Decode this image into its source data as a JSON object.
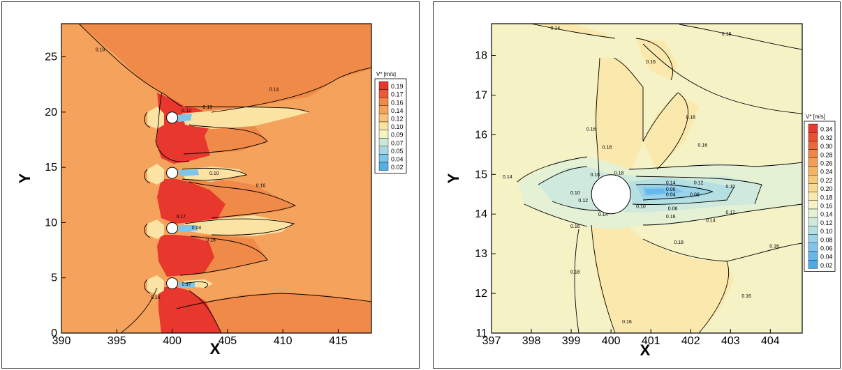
{
  "chart_data": [
    {
      "type": "contour",
      "xlabel": "X",
      "ylabel": "Y",
      "xlim": [
        390,
        418
      ],
      "ylim": [
        0,
        28
      ],
      "xticks": [
        390,
        395,
        400,
        405,
        410,
        415
      ],
      "yticks": [
        0,
        5,
        10,
        15,
        20,
        25
      ],
      "legend_title": "V* [m/s]",
      "legend_levels": [
        "0.19",
        "0.17",
        "0.16",
        "0.14",
        "0.12",
        "0.10",
        "0.09",
        "0.07",
        "0.05",
        "0.04",
        "0.02"
      ],
      "legend_colors": [
        "#e8372c",
        "#ec5a35",
        "#f08a48",
        "#f5a25c",
        "#f8c477",
        "#fbe3a4",
        "#f4f3c2",
        "#cde8d6",
        "#a7d8e3",
        "#7ec5ea",
        "#56afe6"
      ],
      "cylinders": [
        {
          "x": 400,
          "y": 19.5
        },
        {
          "x": 400,
          "y": 14.5
        },
        {
          "x": 400,
          "y": 9.5
        },
        {
          "x": 400,
          "y": 4.5
        }
      ],
      "contour_labels": [
        {
          "text": "0.16",
          "x": 393.5,
          "y": 25.5
        },
        {
          "text": "0.12",
          "x": 401.3,
          "y": 20.0
        },
        {
          "text": "0.10",
          "x": 403.2,
          "y": 20.3
        },
        {
          "text": "0.14",
          "x": 409.2,
          "y": 21.9
        },
        {
          "text": "0.10",
          "x": 403.8,
          "y": 14.3
        },
        {
          "text": "0.16",
          "x": 408.0,
          "y": 13.2
        },
        {
          "text": "0.17",
          "x": 400.8,
          "y": 10.4
        },
        {
          "text": "0.04",
          "x": 402.2,
          "y": 9.4
        },
        {
          "text": "0.16",
          "x": 403.5,
          "y": 8.3
        },
        {
          "text": "0.17",
          "x": 401.3,
          "y": 4.3
        },
        {
          "text": "0.16",
          "x": 398.5,
          "y": 3.1
        }
      ]
    },
    {
      "type": "contour",
      "xlabel": "X",
      "ylabel": "Y",
      "xlim": [
        397,
        404.8
      ],
      "ylim": [
        11,
        18.8
      ],
      "xticks": [
        397,
        398,
        399,
        400,
        401,
        402,
        403,
        404
      ],
      "yticks": [
        11,
        12,
        13,
        14,
        15,
        16,
        17,
        18
      ],
      "legend_title": "V* [m/s]",
      "legend_levels": [
        "0.34",
        "0.32",
        "0.30",
        "0.28",
        "0.26",
        "0.24",
        "0.22",
        "0.20",
        "0.18",
        "0.16",
        "0.14",
        "0.12",
        "0.10",
        "0.08",
        "0.06",
        "0.04",
        "0.02"
      ],
      "legend_colors": [
        "#e83a2e",
        "#ea5032",
        "#ec6a39",
        "#ef8645",
        "#f29e55",
        "#f4b466",
        "#f7c97b",
        "#f9da92",
        "#fbe8ac",
        "#f5f3c6",
        "#e5f1d4",
        "#cfe9dc",
        "#b6dfe2",
        "#9bd3e8",
        "#80c5ec",
        "#66b8ec",
        "#4eaae6"
      ],
      "cylinder": {
        "x": 400,
        "y": 14.5
      },
      "contour_labels": [
        {
          "text": "0.14",
          "x": 398.6,
          "y": 18.65
        },
        {
          "text": "0.16",
          "x": 402.9,
          "y": 18.5
        },
        {
          "text": "0.16",
          "x": 401.0,
          "y": 17.8
        },
        {
          "text": "0.16",
          "x": 399.5,
          "y": 16.1
        },
        {
          "text": "0.18",
          "x": 402.0,
          "y": 16.4
        },
        {
          "text": "0.18",
          "x": 399.9,
          "y": 15.65
        },
        {
          "text": "0.16",
          "x": 402.3,
          "y": 15.7
        },
        {
          "text": "0.14",
          "x": 397.4,
          "y": 14.9
        },
        {
          "text": "0.16",
          "x": 399.6,
          "y": 14.95
        },
        {
          "text": "0.18",
          "x": 400.2,
          "y": 15.0
        },
        {
          "text": "0.14",
          "x": 401.5,
          "y": 14.75
        },
        {
          "text": "0.12",
          "x": 402.2,
          "y": 14.75
        },
        {
          "text": "0.10",
          "x": 403.0,
          "y": 14.65
        },
        {
          "text": "0.06",
          "x": 401.5,
          "y": 14.58
        },
        {
          "text": "0.04",
          "x": 401.5,
          "y": 14.45
        },
        {
          "text": "0.08",
          "x": 402.1,
          "y": 14.45
        },
        {
          "text": "0.10",
          "x": 399.1,
          "y": 14.5
        },
        {
          "text": "0.12",
          "x": 399.3,
          "y": 14.3
        },
        {
          "text": "0.14",
          "x": 399.8,
          "y": 13.95
        },
        {
          "text": "0.10",
          "x": 400.75,
          "y": 14.15
        },
        {
          "text": "0.06",
          "x": 401.55,
          "y": 14.1
        },
        {
          "text": "0.16",
          "x": 401.5,
          "y": 13.9
        },
        {
          "text": "0.12",
          "x": 403.0,
          "y": 14.0
        },
        {
          "text": "0.14",
          "x": 402.5,
          "y": 13.8
        },
        {
          "text": "0.16",
          "x": 399.1,
          "y": 13.65
        },
        {
          "text": "0.18",
          "x": 401.7,
          "y": 13.25
        },
        {
          "text": "0.16",
          "x": 404.1,
          "y": 13.15
        },
        {
          "text": "0.18",
          "x": 399.1,
          "y": 12.5
        },
        {
          "text": "0.16",
          "x": 403.4,
          "y": 11.9
        },
        {
          "text": "0.16",
          "x": 400.4,
          "y": 11.25
        }
      ]
    }
  ]
}
